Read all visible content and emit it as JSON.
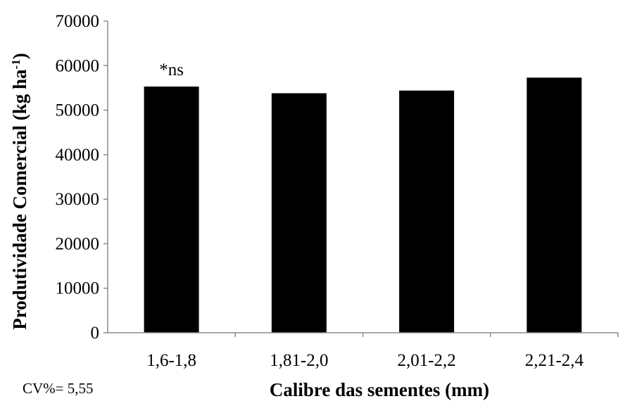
{
  "chart_data": {
    "type": "bar",
    "categories": [
      "1,6-1,8",
      "1,81-2,0",
      "2,01-2,2",
      "2,21-2,4"
    ],
    "values": [
      55300,
      53800,
      54400,
      57300
    ],
    "xlabel": "Calibre das sementes (mm)",
    "ylabel": "Produtividade Comercial (kg ha",
    "ylabel_superscript": "-1",
    "ylabel_suffix": ")",
    "ylim": [
      0,
      70000
    ],
    "yticks": [
      "0",
      "10000",
      "20000",
      "30000",
      "40000",
      "50000",
      "60000",
      "70000"
    ],
    "grid": false,
    "legend": "none",
    "bar_color": "#000000",
    "annotations": [
      {
        "category_index": 0,
        "text": "*ns"
      }
    ]
  },
  "footnote": "CV%= 5,55"
}
